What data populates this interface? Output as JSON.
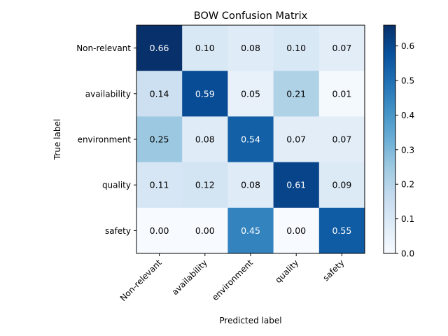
{
  "chart_data": {
    "type": "heatmap",
    "title": "BOW Confusion Matrix",
    "xlabel": "Predicted label",
    "ylabel": "True label",
    "x_categories": [
      "Non-relevant",
      "availability",
      "environment",
      "quality",
      "safety"
    ],
    "y_categories": [
      "Non-relevant",
      "availability",
      "environment",
      "quality",
      "safety"
    ],
    "values": [
      [
        0.66,
        0.1,
        0.08,
        0.1,
        0.07
      ],
      [
        0.14,
        0.59,
        0.05,
        0.21,
        0.01
      ],
      [
        0.25,
        0.08,
        0.54,
        0.07,
        0.07
      ],
      [
        0.11,
        0.12,
        0.08,
        0.61,
        0.09
      ],
      [
        0.0,
        0.0,
        0.45,
        0.0,
        0.55
      ]
    ],
    "colormap": "Blues",
    "value_range": [
      0,
      0.66
    ],
    "colorbar": {
      "ticks": [
        0.0,
        0.1,
        0.2,
        0.3,
        0.4,
        0.5,
        0.6
      ],
      "tick_labels": [
        "0.0",
        "0.1",
        "0.2",
        "0.3",
        "0.4",
        "0.5",
        "0.6"
      ]
    }
  }
}
